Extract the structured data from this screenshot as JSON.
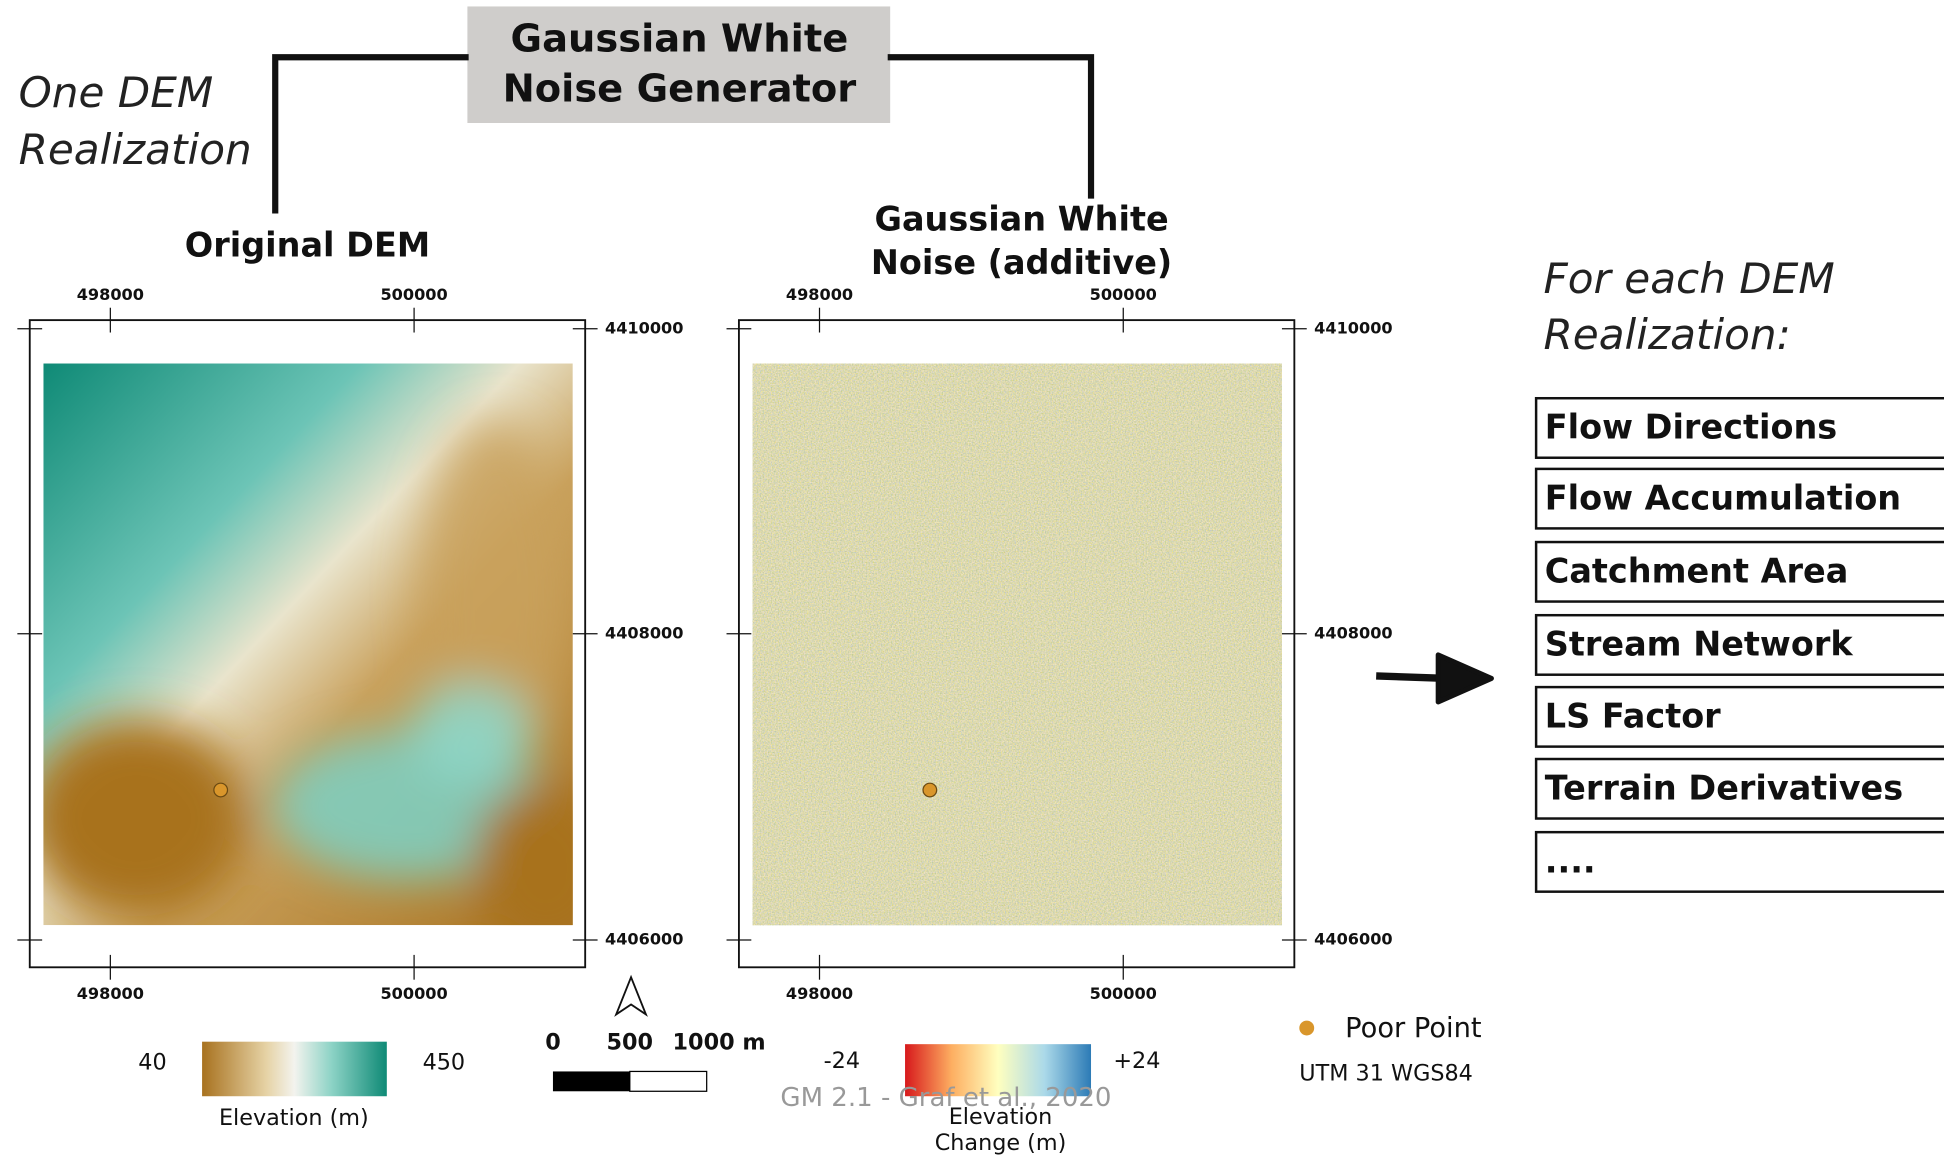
{
  "header": {
    "title": [
      "Gaussian White",
      "Noise Generator"
    ]
  },
  "left_note": [
    "One DEM",
    "Realization"
  ],
  "maps": [
    {
      "title": [
        "Original DEM"
      ],
      "top_ticks": [
        "498000",
        "500000"
      ],
      "bottom_ticks": [
        "498000",
        "500000"
      ],
      "right_ticks": [
        "4410000",
        "4408000",
        "4406000"
      ]
    },
    {
      "title": [
        "Gaussian White",
        "Noise (additive)"
      ],
      "top_ticks": [
        "498000",
        "500000"
      ],
      "bottom_ticks": [
        "498000",
        "500000"
      ],
      "right_ticks": [
        "4410000",
        "4408000",
        "4406000"
      ]
    }
  ],
  "right_note": [
    "For each DEM",
    "Realization:"
  ],
  "outputs": [
    "Flow Directions",
    "Flow Accumulation",
    "Catchment Area",
    "Stream Network",
    "LS Factor",
    "Terrain Derivatives",
    "...."
  ],
  "legend": {
    "elevation": {
      "min": "40",
      "max": "450",
      "label": "Elevation (m)"
    },
    "scale_bar": [
      "0",
      "500",
      "1000 m"
    ],
    "change": {
      "min": "-24",
      "max": "+24",
      "label": [
        "Elevation",
        "Change (m)"
      ]
    },
    "point": "Poor Point",
    "crs": "UTM 31 WGS84"
  },
  "footer": "GM 2.1 - Graf et al., 2020"
}
